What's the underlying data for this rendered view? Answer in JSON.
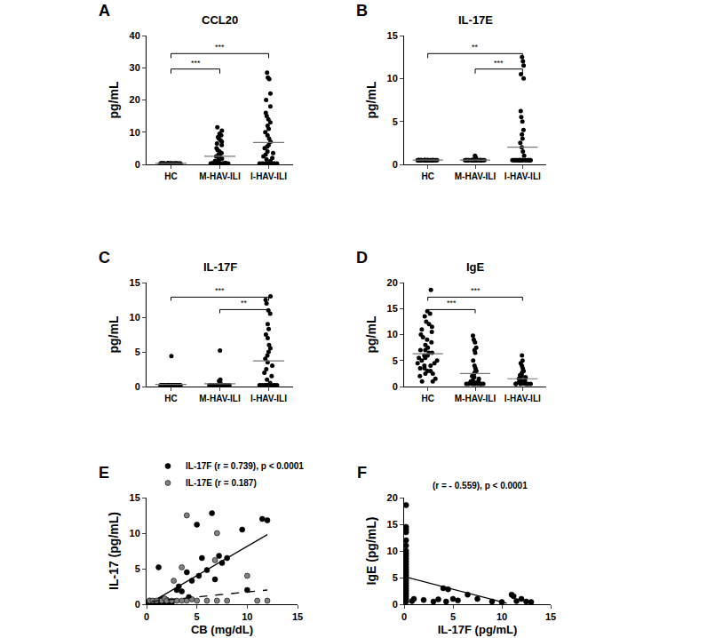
{
  "chart_data": [
    {
      "type": "dot",
      "panel": "A",
      "title": "CCL20",
      "y_label": "pg/mL",
      "color": "#000000",
      "grid": false,
      "categories": [
        "HC",
        "M-HAV-ILI",
        "I-HAV-ILI"
      ],
      "values": [
        [
          0.3,
          0.3,
          0.3,
          0.3,
          0.3,
          0.3,
          0.3,
          0.3,
          0.3,
          0.3,
          0.3,
          0.3,
          0.3,
          0.3,
          0.3,
          0.3,
          0.3,
          0.3,
          0.3,
          0.3,
          0.3,
          0.3,
          0.3,
          0.3,
          0.3,
          0.3,
          0.3,
          0.3,
          0.3,
          0.3
        ],
        [
          0.3,
          0.3,
          0.3,
          0.3,
          0.3,
          0.3,
          0.3,
          0.3,
          0.3,
          0.3,
          0.3,
          0.3,
          0.3,
          0.3,
          0.3,
          0.5,
          0.8,
          1,
          1.2,
          1.5,
          1.8,
          2,
          2.2,
          2.5,
          3,
          3.2,
          3.5,
          4,
          4.5,
          5,
          6,
          6.5,
          7,
          7.5,
          8,
          8.5,
          9,
          9.5,
          10.5,
          11.5
        ],
        [
          0.3,
          0.3,
          0.3,
          0.3,
          0.3,
          0.3,
          0.3,
          0.3,
          0.3,
          0.3,
          1,
          1.5,
          2,
          2.5,
          3,
          3.5,
          4,
          5,
          5.5,
          6,
          7,
          8,
          9,
          10,
          11,
          12,
          13,
          14,
          15,
          16,
          18,
          20,
          22,
          26.5,
          27,
          28.5
        ]
      ],
      "means": [
        0.3,
        2.5,
        6.8
      ],
      "ylim": [
        0,
        40
      ],
      "yticks": [
        0,
        10,
        20,
        30,
        40
      ],
      "comparisons": [
        {
          "from": "HC",
          "to": "I-HAV-ILI",
          "label": "***"
        },
        {
          "from": "HC",
          "to": "M-HAV-ILI",
          "label": "***"
        }
      ]
    },
    {
      "type": "dot",
      "panel": "B",
      "title": "IL-17E",
      "y_label": "pg/mL",
      "color": "#000000",
      "grid": false,
      "categories": [
        "HC",
        "M-HAV-ILI",
        "I-HAV-ILI"
      ],
      "values": [
        [
          0.5,
          0.5,
          0.5,
          0.5,
          0.5,
          0.5,
          0.5,
          0.5,
          0.5,
          0.5,
          0.5,
          0.5,
          0.5,
          0.5,
          0.5,
          0.5,
          0.5,
          0.5,
          0.5,
          0.5,
          0.5,
          0.5,
          0.5,
          0.5,
          0.5,
          0.5,
          0.5,
          0.5,
          0.5,
          0.5
        ],
        [
          0.5,
          0.5,
          0.5,
          0.5,
          0.5,
          0.5,
          0.5,
          0.5,
          0.5,
          0.5,
          0.5,
          0.5,
          0.5,
          0.5,
          0.5,
          0.5,
          0.5,
          0.5,
          0.5,
          0.5,
          0.5,
          0.5,
          0.5,
          0.5,
          0.5,
          0.5,
          0.5,
          0.5,
          0.5,
          0.5,
          0.5,
          0.5,
          0.8,
          0.8,
          1
        ],
        [
          0.5,
          0.5,
          0.5,
          0.5,
          0.5,
          0.5,
          0.5,
          0.5,
          0.5,
          0.5,
          0.5,
          0.5,
          0.5,
          0.5,
          0.5,
          0.5,
          0.5,
          0.5,
          0.5,
          0.5,
          1,
          1.5,
          2,
          2.5,
          3,
          3.5,
          4,
          5,
          5.5,
          6.2,
          10,
          10.5,
          11.5,
          12,
          12.5
        ]
      ],
      "means": [
        0.5,
        0.5,
        2.0
      ],
      "ylim": [
        0,
        15
      ],
      "yticks": [
        0,
        5,
        10,
        15
      ],
      "comparisons": [
        {
          "from": "HC",
          "to": "I-HAV-ILI",
          "label": "**"
        },
        {
          "from": "M-HAV-ILI",
          "to": "I-HAV-ILI",
          "label": "***"
        }
      ]
    },
    {
      "type": "dot",
      "panel": "C",
      "title": "IL-17F",
      "y_label": "pg/mL",
      "color": "#000000",
      "grid": false,
      "categories": [
        "HC",
        "M-HAV-ILI",
        "I-HAV-ILI"
      ],
      "values": [
        [
          0.2,
          0.2,
          0.2,
          0.2,
          0.2,
          0.2,
          0.2,
          0.2,
          0.2,
          0.2,
          0.2,
          0.2,
          0.2,
          0.2,
          0.2,
          0.2,
          0.2,
          0.2,
          0.2,
          0.2,
          0.2,
          0.2,
          0.2,
          0.2,
          0.2,
          0.2,
          0.2,
          0.2,
          0.2,
          0.2,
          4.4
        ],
        [
          0.2,
          0.2,
          0.2,
          0.2,
          0.2,
          0.2,
          0.2,
          0.2,
          0.2,
          0.2,
          0.2,
          0.2,
          0.2,
          0.2,
          0.2,
          0.2,
          0.2,
          0.2,
          0.2,
          0.2,
          0.2,
          0.2,
          0.2,
          0.2,
          0.2,
          0.2,
          0.2,
          0.2,
          0.2,
          0.2,
          0.5,
          0.8,
          1,
          5.2
        ],
        [
          0.2,
          0.2,
          0.2,
          0.2,
          0.2,
          0.2,
          0.2,
          0.2,
          0.2,
          0.2,
          0.5,
          1,
          1.5,
          2,
          2.5,
          3,
          3.5,
          4,
          4.5,
          5,
          5.5,
          6,
          7,
          7.5,
          8.3,
          9,
          10.5,
          11,
          12,
          12.5,
          13
        ]
      ],
      "means": [
        0.3,
        0.4,
        3.7
      ],
      "ylim": [
        0,
        15
      ],
      "yticks": [
        0,
        5,
        10,
        15
      ],
      "comparisons": [
        {
          "from": "HC",
          "to": "I-HAV-ILI",
          "label": "***"
        },
        {
          "from": "M-HAV-ILI",
          "to": "I-HAV-ILI",
          "label": "**"
        }
      ]
    },
    {
      "type": "dot",
      "panel": "D",
      "title": "IgE",
      "y_label": "pg/mL",
      "color": "#000000",
      "grid": false,
      "categories": [
        "HC",
        "M-HAV-ILI",
        "I-HAV-ILI"
      ],
      "values": [
        [
          18.6,
          14.5,
          14,
          13.5,
          12.5,
          12,
          11.5,
          11,
          10.5,
          10,
          9.5,
          9,
          8.5,
          8,
          7.5,
          7,
          7,
          6.5,
          6.5,
          6,
          6,
          5.5,
          5.5,
          5,
          5,
          4.5,
          4.5,
          4,
          4,
          3.5,
          3.5,
          3,
          3,
          2.5,
          2.5,
          2,
          1.5,
          1,
          1
        ],
        [
          9.8,
          9,
          8.5,
          7.5,
          7,
          6.5,
          5,
          4,
          3.5,
          3,
          2.8,
          2.5,
          2,
          1.8,
          1.5,
          1.2,
          1,
          1,
          0.8,
          0.8,
          0.6,
          0.6,
          0.5,
          0.5,
          0.5,
          0.5,
          0.5,
          0.5,
          0.5,
          0.5
        ],
        [
          6,
          5,
          4.5,
          4,
          3.5,
          3,
          2.8,
          2.5,
          2.2,
          2,
          1.8,
          1.5,
          1.5,
          1.2,
          1,
          1,
          0.8,
          0.8,
          0.6,
          0.6,
          0.5,
          0.5,
          0.5,
          0.5,
          0.5,
          0.5
        ]
      ],
      "means": [
        6.3,
        2.5,
        1.5
      ],
      "ylim": [
        0,
        20
      ],
      "yticks": [
        0,
        5,
        10,
        15,
        20
      ],
      "comparisons": [
        {
          "from": "HC",
          "to": "I-HAV-ILI",
          "label": "***"
        },
        {
          "from": "HC",
          "to": "M-HAV-ILI",
          "label": "***"
        }
      ]
    },
    {
      "type": "scatter",
      "panel": "E",
      "x_label": "CB (mg/dL)",
      "y_label": "IL-17 (pg/mL)",
      "grid": false,
      "legend": "upper left",
      "xlim": [
        0,
        15
      ],
      "xticks": [
        0,
        5,
        10,
        15
      ],
      "ylim": [
        0,
        15
      ],
      "yticks": [
        0,
        5,
        10,
        15
      ],
      "series": [
        {
          "name": "IL-17F (r = 0.739), p < 0.0001",
          "color": "#000000",
          "marker": "circle",
          "line_style": "solid",
          "x": [
            0.2,
            0.3,
            0.4,
            0.5,
            0.6,
            0.7,
            0.8,
            0.9,
            1,
            1.1,
            1.2,
            1.4,
            1.5,
            1.6,
            1.8,
            2,
            2.2,
            2.5,
            1.2,
            3,
            3.2,
            3.5,
            4,
            4.2,
            4.5,
            5.2,
            5,
            5.5,
            6,
            6.5,
            6.8,
            7.2,
            7.5,
            8,
            9.5,
            10,
            11.5,
            12
          ],
          "values": [
            0.2,
            0.5,
            0.3,
            0.2,
            0.1,
            0.3,
            0.4,
            0.1,
            0.2,
            0.3,
            0.5,
            0.2,
            0.3,
            0.8,
            0.2,
            0.6,
            0.3,
            0.2,
            5.2,
            2,
            2.5,
            1.8,
            4.5,
            1,
            3.3,
            4,
            11.2,
            6.5,
            4.8,
            12.8,
            3.5,
            6.8,
            5.8,
            6.5,
            10.5,
            2,
            12,
            11.8
          ],
          "fit": {
            "x": [
              0.5,
              12
            ],
            "y": [
              0.3,
              9.8
            ]
          }
        },
        {
          "name": "IL-17E (r = 0.187)",
          "color": "#808080",
          "marker": "circle",
          "line_style": "dash",
          "x": [
            0.3,
            0.6,
            1,
            1.5,
            1.8,
            2,
            2.5,
            2.7,
            3,
            3.5,
            3.5,
            4,
            4,
            4.5,
            5,
            6,
            6.8,
            7,
            7,
            8,
            10,
            11,
            12
          ],
          "values": [
            0.5,
            0.5,
            0.5,
            0.5,
            0.8,
            0.5,
            0.5,
            3.3,
            0.5,
            0.5,
            5.2,
            0.5,
            12.5,
            0.7,
            0.5,
            0.5,
            6.2,
            0.5,
            10,
            0.5,
            4,
            0.5,
            0.5
          ],
          "fit": {
            "x": [
              0.5,
              12
            ],
            "y": [
              0.4,
              2
            ]
          }
        }
      ]
    },
    {
      "type": "scatter",
      "panel": "F",
      "x_label": "IL-17F (pg/mL)",
      "y_label": "IgE (pg/mL)",
      "grid": false,
      "annotation": "(r = - 0.559), p < 0.0001",
      "xlim": [
        0,
        15
      ],
      "xticks": [
        0,
        5,
        10,
        15
      ],
      "ylim": [
        0,
        20
      ],
      "yticks": [
        0,
        5,
        10,
        15,
        20
      ],
      "series": [
        {
          "color": "#000000",
          "marker": "circle",
          "line_style": "solid",
          "x": [
            0.2,
            0.2,
            0.2,
            0.2,
            0.2,
            0.2,
            0.2,
            0.2,
            0.2,
            0.2,
            0.2,
            0.2,
            0.2,
            0.2,
            0.2,
            0.2,
            0.2,
            0.2,
            0.2,
            0.2,
            0.2,
            0.2,
            0.2,
            0.2,
            0.2,
            0.2,
            0.8,
            1,
            2,
            3,
            3.5,
            4,
            4.3,
            4.5,
            5,
            5.5,
            6.5,
            7.5,
            9,
            10,
            11,
            11.2,
            11.5,
            12,
            12.5,
            13
          ],
          "values": [
            18.6,
            14.5,
            14,
            13.5,
            12,
            11,
            10,
            9.5,
            9,
            8.5,
            8,
            7.5,
            7,
            6.5,
            6,
            5.5,
            5,
            4.5,
            4,
            3.5,
            3,
            2.5,
            2,
            1.5,
            1,
            0.5,
            0.6,
            1,
            0.8,
            0.5,
            0.9,
            3,
            0.5,
            2.8,
            1,
            0.7,
            1.8,
            1,
            0.5,
            0.4,
            1.8,
            1.5,
            0.6,
            1,
            0.5,
            0.4
          ],
          "fit": {
            "x": [
              0,
              10.5
            ],
            "y": [
              5.2,
              0.2
            ]
          }
        }
      ]
    }
  ]
}
